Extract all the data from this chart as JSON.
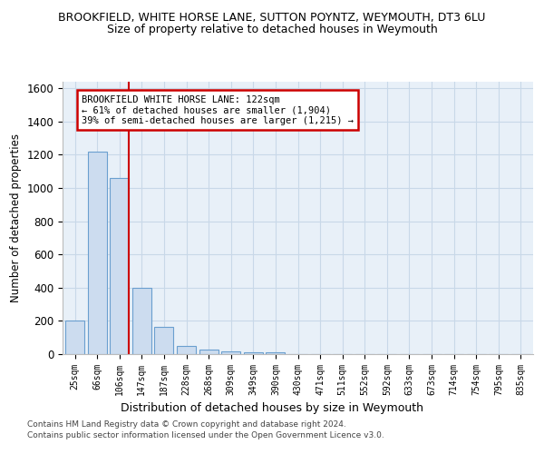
{
  "title": "BROOKFIELD, WHITE HORSE LANE, SUTTON POYNTZ, WEYMOUTH, DT3 6LU",
  "subtitle": "Size of property relative to detached houses in Weymouth",
  "xlabel": "Distribution of detached houses by size in Weymouth",
  "ylabel": "Number of detached properties",
  "bar_color": "#ccdcef",
  "bar_edge_color": "#6a9fcf",
  "vline_color": "#cc0000",
  "vline_position": 2.425,
  "categories": [
    "25sqm",
    "66sqm",
    "106sqm",
    "147sqm",
    "187sqm",
    "228sqm",
    "268sqm",
    "309sqm",
    "349sqm",
    "390sqm",
    "430sqm",
    "471sqm",
    "511sqm",
    "552sqm",
    "592sqm",
    "633sqm",
    "673sqm",
    "714sqm",
    "754sqm",
    "795sqm",
    "835sqm"
  ],
  "values": [
    200,
    1220,
    1060,
    400,
    165,
    50,
    30,
    15,
    10,
    10,
    0,
    0,
    0,
    0,
    0,
    0,
    0,
    0,
    0,
    0,
    0
  ],
  "ylim": [
    0,
    1640
  ],
  "yticks": [
    0,
    200,
    400,
    600,
    800,
    1000,
    1200,
    1400,
    1600
  ],
  "annotation_title": "BROOKFIELD WHITE HORSE LANE: 122sqm",
  "annotation_line1": "← 61% of detached houses are smaller (1,904)",
  "annotation_line2": "39% of semi-detached houses are larger (1,215) →",
  "annotation_box_color": "#ffffff",
  "annotation_box_edge": "#cc0000",
  "grid_color": "#c8d8e8",
  "background_color": "#e8f0f8",
  "footer1": "Contains HM Land Registry data © Crown copyright and database right 2024.",
  "footer2": "Contains public sector information licensed under the Open Government Licence v3.0."
}
